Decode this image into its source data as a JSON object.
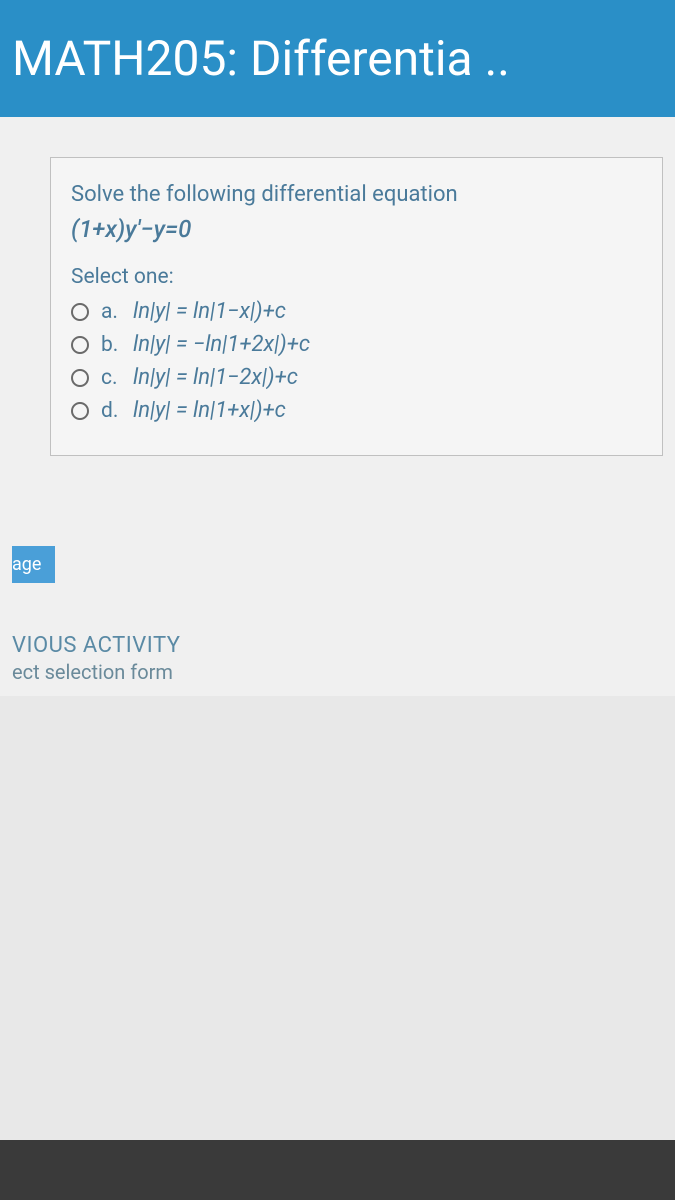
{
  "header": {
    "title": "MATH205: Differentia .."
  },
  "question": {
    "prompt": "Solve the following differential equation",
    "equation": "(1+x)y′−y=0",
    "select_label": "Select one:",
    "options": [
      {
        "letter": "a.",
        "text": "ln|y| = ln|1−x|)+c"
      },
      {
        "letter": "b.",
        "text": "ln|y| = −ln|1+2x|)+c"
      },
      {
        "letter": "c.",
        "text": "ln|y| = ln|1−2x|)+c"
      },
      {
        "letter": "d.",
        "text": "ln|y| = ln|1+x|)+c"
      }
    ]
  },
  "page_badge": "age",
  "previous_activity": {
    "label": "VIOUS ACTIVITY",
    "sub": "ect selection form"
  },
  "colors": {
    "header_bg": "#2a8fc7",
    "header_text": "#ffffff",
    "body_bg": "#e8e8e8",
    "box_border": "#c0c0c0",
    "text_blue": "#4a7a9a",
    "badge_bg": "#4a9fd8"
  }
}
